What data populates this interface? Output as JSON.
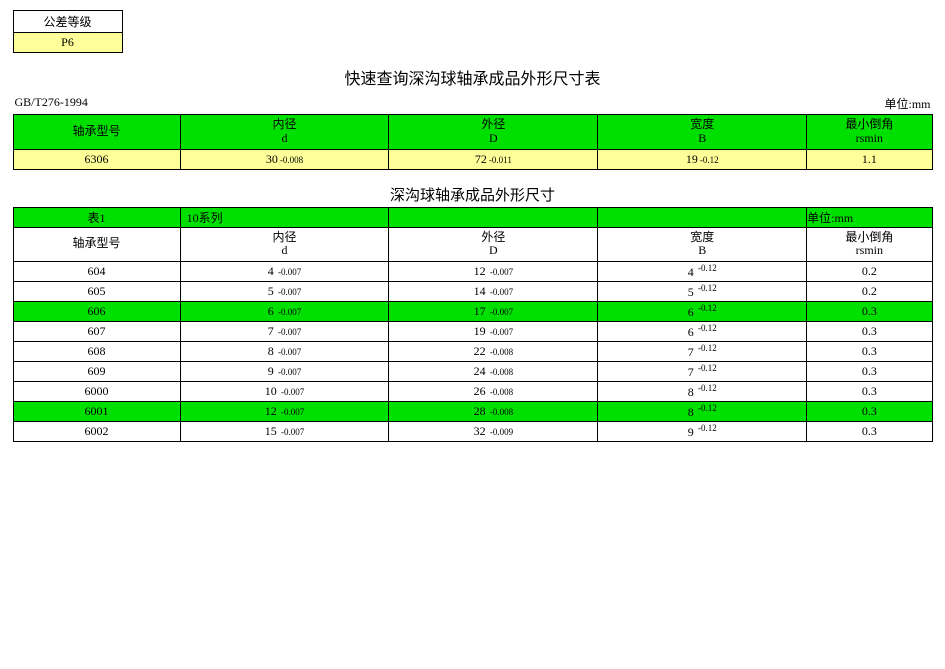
{
  "colors": {
    "green": "#00e000",
    "yellow": "#ffff99",
    "white": "#ffffff",
    "border": "#000000"
  },
  "tolerance_box": {
    "header": "公差等级",
    "value": "P6"
  },
  "quick_lookup": {
    "title": "快速查询深沟球轴承成品外形尺寸表",
    "standard": "GB/T276-1994",
    "unit": "单位:mm",
    "headers": {
      "model": "轴承型号",
      "inner_l1": "内径",
      "inner_l2": "d",
      "outer_l1": "外径",
      "outer_l2": "D",
      "width_l1": "宽度",
      "width_l2": "B",
      "chamfer_l1": "最小倒角",
      "chamfer_l2": "rsmin"
    },
    "row": {
      "model": "6306",
      "d_main": "30",
      "d_tol": "-0.008",
      "D_main": "72",
      "D_tol": "-0.011",
      "B_main": "19",
      "B_tol": "-0.12",
      "rsmin": "1.1"
    }
  },
  "spec_table": {
    "title": "深沟球轴承成品外形尺寸",
    "series_label": "表1",
    "series_name": "10系列",
    "unit": "单位:mm",
    "headers": {
      "model": "轴承型号",
      "inner_l1": "内径",
      "inner_l2": "d",
      "outer_l1": "外径",
      "outer_l2": "D",
      "width_l1": "宽度",
      "width_l2": "B",
      "chamfer_l1": "最小倒角",
      "chamfer_l2": "rsmin"
    },
    "rows": [
      {
        "model": "604",
        "d_main": "4",
        "d_tol": "-0.007",
        "D_main": "12",
        "D_tol": "-0.007",
        "B_main": "4",
        "B_tol": "-0.12",
        "rsmin": "0.2",
        "hl": false
      },
      {
        "model": "605",
        "d_main": "5",
        "d_tol": "-0.007",
        "D_main": "14",
        "D_tol": "-0.007",
        "B_main": "5",
        "B_tol": "-0.12",
        "rsmin": "0.2",
        "hl": false
      },
      {
        "model": "606",
        "d_main": "6",
        "d_tol": "-0.007",
        "D_main": "17",
        "D_tol": "-0.007",
        "B_main": "6",
        "B_tol": "-0.12",
        "rsmin": "0.3",
        "hl": true
      },
      {
        "model": "607",
        "d_main": "7",
        "d_tol": "-0.007",
        "D_main": "19",
        "D_tol": "-0.007",
        "B_main": "6",
        "B_tol": "-0.12",
        "rsmin": "0.3",
        "hl": false
      },
      {
        "model": "608",
        "d_main": "8",
        "d_tol": "-0.007",
        "D_main": "22",
        "D_tol": "-0.008",
        "B_main": "7",
        "B_tol": "-0.12",
        "rsmin": "0.3",
        "hl": false
      },
      {
        "model": "609",
        "d_main": "9",
        "d_tol": "-0.007",
        "D_main": "24",
        "D_tol": "-0.008",
        "B_main": "7",
        "B_tol": "-0.12",
        "rsmin": "0.3",
        "hl": false
      },
      {
        "model": "6000",
        "d_main": "10",
        "d_tol": "-0.007",
        "D_main": "26",
        "D_tol": "-0.008",
        "B_main": "8",
        "B_tol": "-0.12",
        "rsmin": "0.3",
        "hl": false
      },
      {
        "model": "6001",
        "d_main": "12",
        "d_tol": "-0.007",
        "D_main": "28",
        "D_tol": "-0.008",
        "B_main": "8",
        "B_tol": "-0.12",
        "rsmin": "0.3",
        "hl": true
      },
      {
        "model": "6002",
        "d_main": "15",
        "d_tol": "-0.007",
        "D_main": "32",
        "D_tol": "-0.009",
        "B_main": "9",
        "B_tol": "-0.12",
        "rsmin": "0.3",
        "hl": false
      }
    ]
  }
}
